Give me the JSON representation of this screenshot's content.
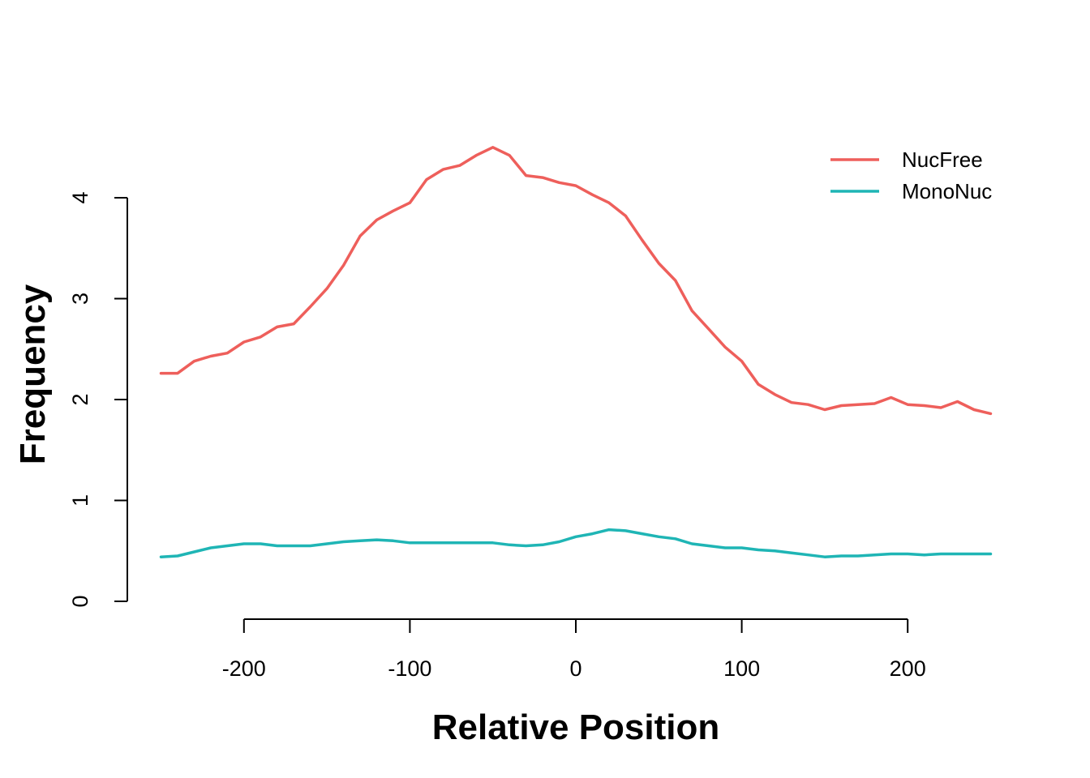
{
  "chart_data": {
    "type": "line",
    "title": "",
    "xlabel": "Relative Position",
    "ylabel": "Frequency",
    "xlim": [
      -250,
      250
    ],
    "ylim": [
      0,
      4.5
    ],
    "x_ticks": [
      -200,
      -100,
      0,
      100,
      200
    ],
    "y_ticks": [
      0,
      1,
      2,
      3,
      4
    ],
    "x_tick_labels": [
      "-200",
      "-100",
      "0",
      "100",
      "200"
    ],
    "y_tick_labels": [
      "0",
      "1",
      "2",
      "3",
      "4"
    ],
    "grid": false,
    "legend_position": "top-right",
    "x": [
      -250,
      -240,
      -230,
      -220,
      -210,
      -200,
      -190,
      -180,
      -170,
      -160,
      -150,
      -140,
      -130,
      -120,
      -110,
      -100,
      -90,
      -80,
      -70,
      -60,
      -50,
      -40,
      -30,
      -20,
      -10,
      0,
      10,
      20,
      30,
      40,
      50,
      60,
      70,
      80,
      90,
      100,
      110,
      120,
      130,
      140,
      150,
      160,
      170,
      180,
      190,
      200,
      210,
      220,
      230,
      240,
      250
    ],
    "series": [
      {
        "name": "NucFree",
        "color": "#EE5F5B",
        "values": [
          2.26,
          2.26,
          2.38,
          2.43,
          2.46,
          2.57,
          2.62,
          2.72,
          2.75,
          2.92,
          3.1,
          3.33,
          3.62,
          3.78,
          3.87,
          3.95,
          4.18,
          4.28,
          4.32,
          4.42,
          4.5,
          4.42,
          4.22,
          4.2,
          4.15,
          4.12,
          4.03,
          3.95,
          3.82,
          3.58,
          3.35,
          3.18,
          2.88,
          2.7,
          2.52,
          2.38,
          2.15,
          2.05,
          1.97,
          1.95,
          1.9,
          1.94,
          1.95,
          1.96,
          2.02,
          1.95,
          1.94,
          1.92,
          1.98,
          1.9,
          1.86
        ]
      },
      {
        "name": "MonoNuc",
        "color": "#1FB5B5",
        "values": [
          0.44,
          0.45,
          0.49,
          0.53,
          0.55,
          0.57,
          0.57,
          0.55,
          0.55,
          0.55,
          0.57,
          0.59,
          0.6,
          0.61,
          0.6,
          0.58,
          0.58,
          0.58,
          0.58,
          0.58,
          0.58,
          0.56,
          0.55,
          0.56,
          0.59,
          0.64,
          0.67,
          0.71,
          0.7,
          0.67,
          0.64,
          0.62,
          0.57,
          0.55,
          0.53,
          0.53,
          0.51,
          0.5,
          0.48,
          0.46,
          0.44,
          0.45,
          0.45,
          0.46,
          0.47,
          0.47,
          0.46,
          0.47,
          0.47,
          0.47,
          0.47
        ]
      }
    ]
  }
}
